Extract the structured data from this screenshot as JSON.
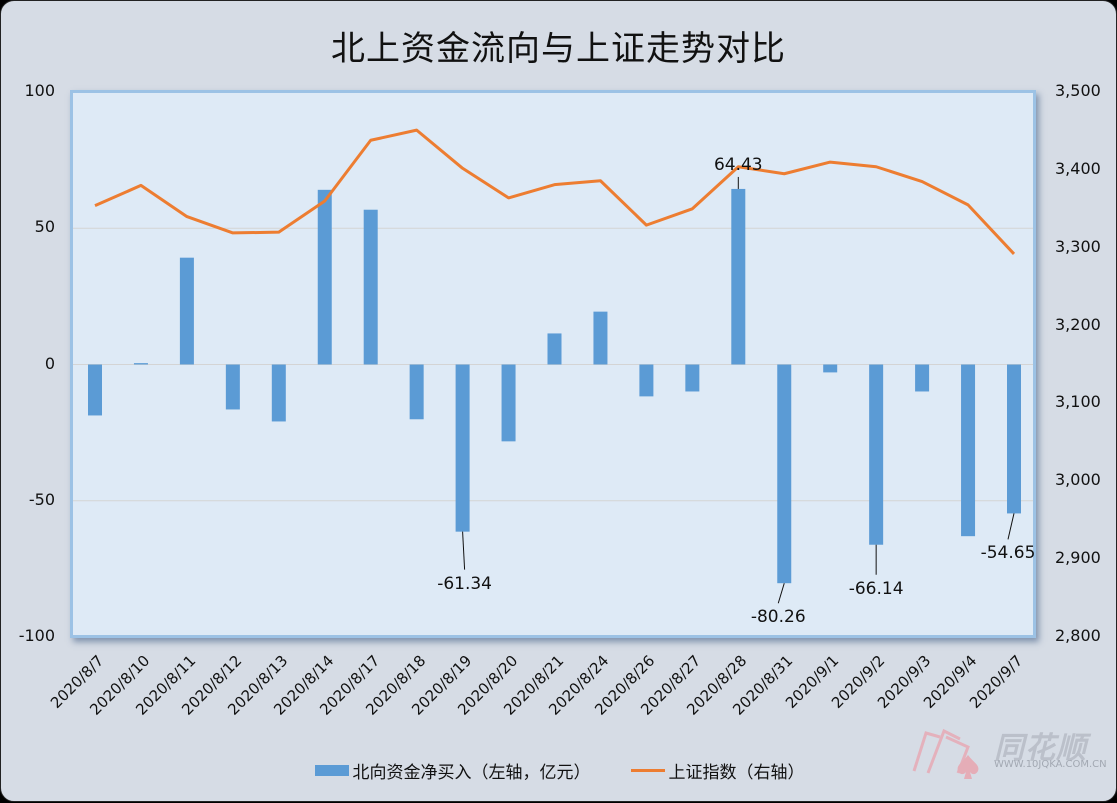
{
  "title": "北上资金流向与上证走势对比",
  "chart_data": {
    "type": "bar+line",
    "title": "北上资金流向与上证走势对比",
    "categories": [
      "2020/8/7",
      "2020/8/10",
      "2020/8/11",
      "2020/8/12",
      "2020/8/13",
      "2020/8/14",
      "2020/8/17",
      "2020/8/18",
      "2020/8/19",
      "2020/8/20",
      "2020/8/21",
      "2020/8/24",
      "2020/8/26",
      "2020/8/27",
      "2020/8/28",
      "2020/8/31",
      "2020/9/1",
      "2020/9/2",
      "2020/9/3",
      "2020/9/4",
      "2020/9/7"
    ],
    "series": [
      {
        "name": "北向资金净买入（左轴，亿元）",
        "type": "bar",
        "axis": "left",
        "color": "#5b9bd5",
        "values": [
          -18.7,
          0.5,
          39.2,
          -16.5,
          -20.9,
          64.1,
          56.8,
          -20.1,
          -61.34,
          -28.2,
          11.4,
          19.4,
          -11.7,
          -9.9,
          64.43,
          -80.26,
          -2.9,
          -66.14,
          -9.9,
          -63.0,
          -54.65
        ]
      },
      {
        "name": "上证指数（右轴）",
        "type": "line",
        "axis": "right",
        "color": "#ed7d31",
        "values": [
          3354,
          3380,
          3340,
          3319,
          3320,
          3360,
          3438,
          3451,
          3402,
          3364,
          3381,
          3386,
          3329,
          3350,
          3404,
          3395,
          3410,
          3404,
          3385,
          3355,
          3292
        ]
      }
    ],
    "left_axis": {
      "ylim": [
        -100,
        100
      ],
      "ticks": [
        "100",
        "50",
        "0",
        "-50",
        "-100"
      ]
    },
    "right_axis": {
      "ylim": [
        2800,
        3500
      ],
      "ticks": [
        "3,500",
        "3,400",
        "3,300",
        "3,200",
        "3,100",
        "3,000",
        "2,900",
        "2,800"
      ]
    },
    "data_labels": [
      {
        "index": 8,
        "text": "-61.34"
      },
      {
        "index": 14,
        "text": "64.43"
      },
      {
        "index": 15,
        "text": "-80.26"
      },
      {
        "index": 17,
        "text": "-66.14"
      },
      {
        "index": 20,
        "text": "-54.65"
      }
    ],
    "grid": true,
    "legend_position": "bottom"
  },
  "legend": {
    "bar_label": "北向资金净买入（左轴，亿元）",
    "line_label": "上证指数（右轴）"
  },
  "watermark": {
    "brand": "同花顺",
    "url": "WWW.10JQKA.COM.CN"
  }
}
